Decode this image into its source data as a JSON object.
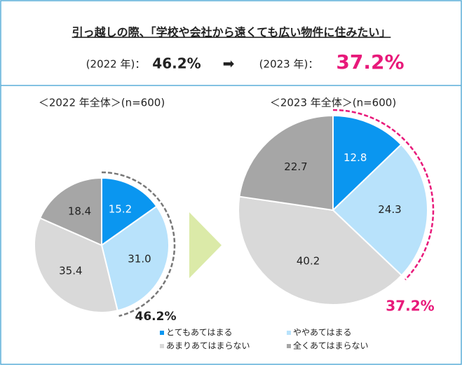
{
  "header": {
    "title": "引っ越しの際、「学校や会社から遠くても広い物件に住みたい」",
    "comparison": [
      {
        "year": "(2022 年)：",
        "value": "46.2%"
      },
      {
        "year": "(2023 年)：",
        "value": "37.2%"
      }
    ],
    "arrow": "➡"
  },
  "chart_data": [
    {
      "type": "pie",
      "title": "＜2022 年全体＞(n=600)",
      "categories": [
        "とてもあてはまる",
        "ややあてはまる",
        "あまりあてはまらない",
        "全くあてはまらない"
      ],
      "values": [
        15.2,
        31.0,
        35.4,
        18.4
      ],
      "value_labels": [
        "15.2",
        "31.0",
        "35.4",
        "18.4"
      ],
      "colors": [
        "#0a96f0",
        "#b8e2fb",
        "#d9d9d9",
        "#a6a6a6"
      ],
      "highlight": {
        "value": 46.2,
        "label": "46.2%",
        "color": "#777777"
      }
    },
    {
      "type": "pie",
      "title": "＜2023 年全体＞(n=600)",
      "categories": [
        "とてもあてはまる",
        "ややあてはまる",
        "あまりあてはまらない",
        "全くあてはまらない"
      ],
      "values": [
        12.8,
        24.3,
        40.2,
        22.7
      ],
      "value_labels": [
        "12.8",
        "24.3",
        "40.2",
        "22.7"
      ],
      "colors": [
        "#0a96f0",
        "#b8e2fb",
        "#d9d9d9",
        "#a6a6a6"
      ],
      "highlight": {
        "value": 37.2,
        "label": "37.2%",
        "color": "#e8197a"
      }
    }
  ]
}
